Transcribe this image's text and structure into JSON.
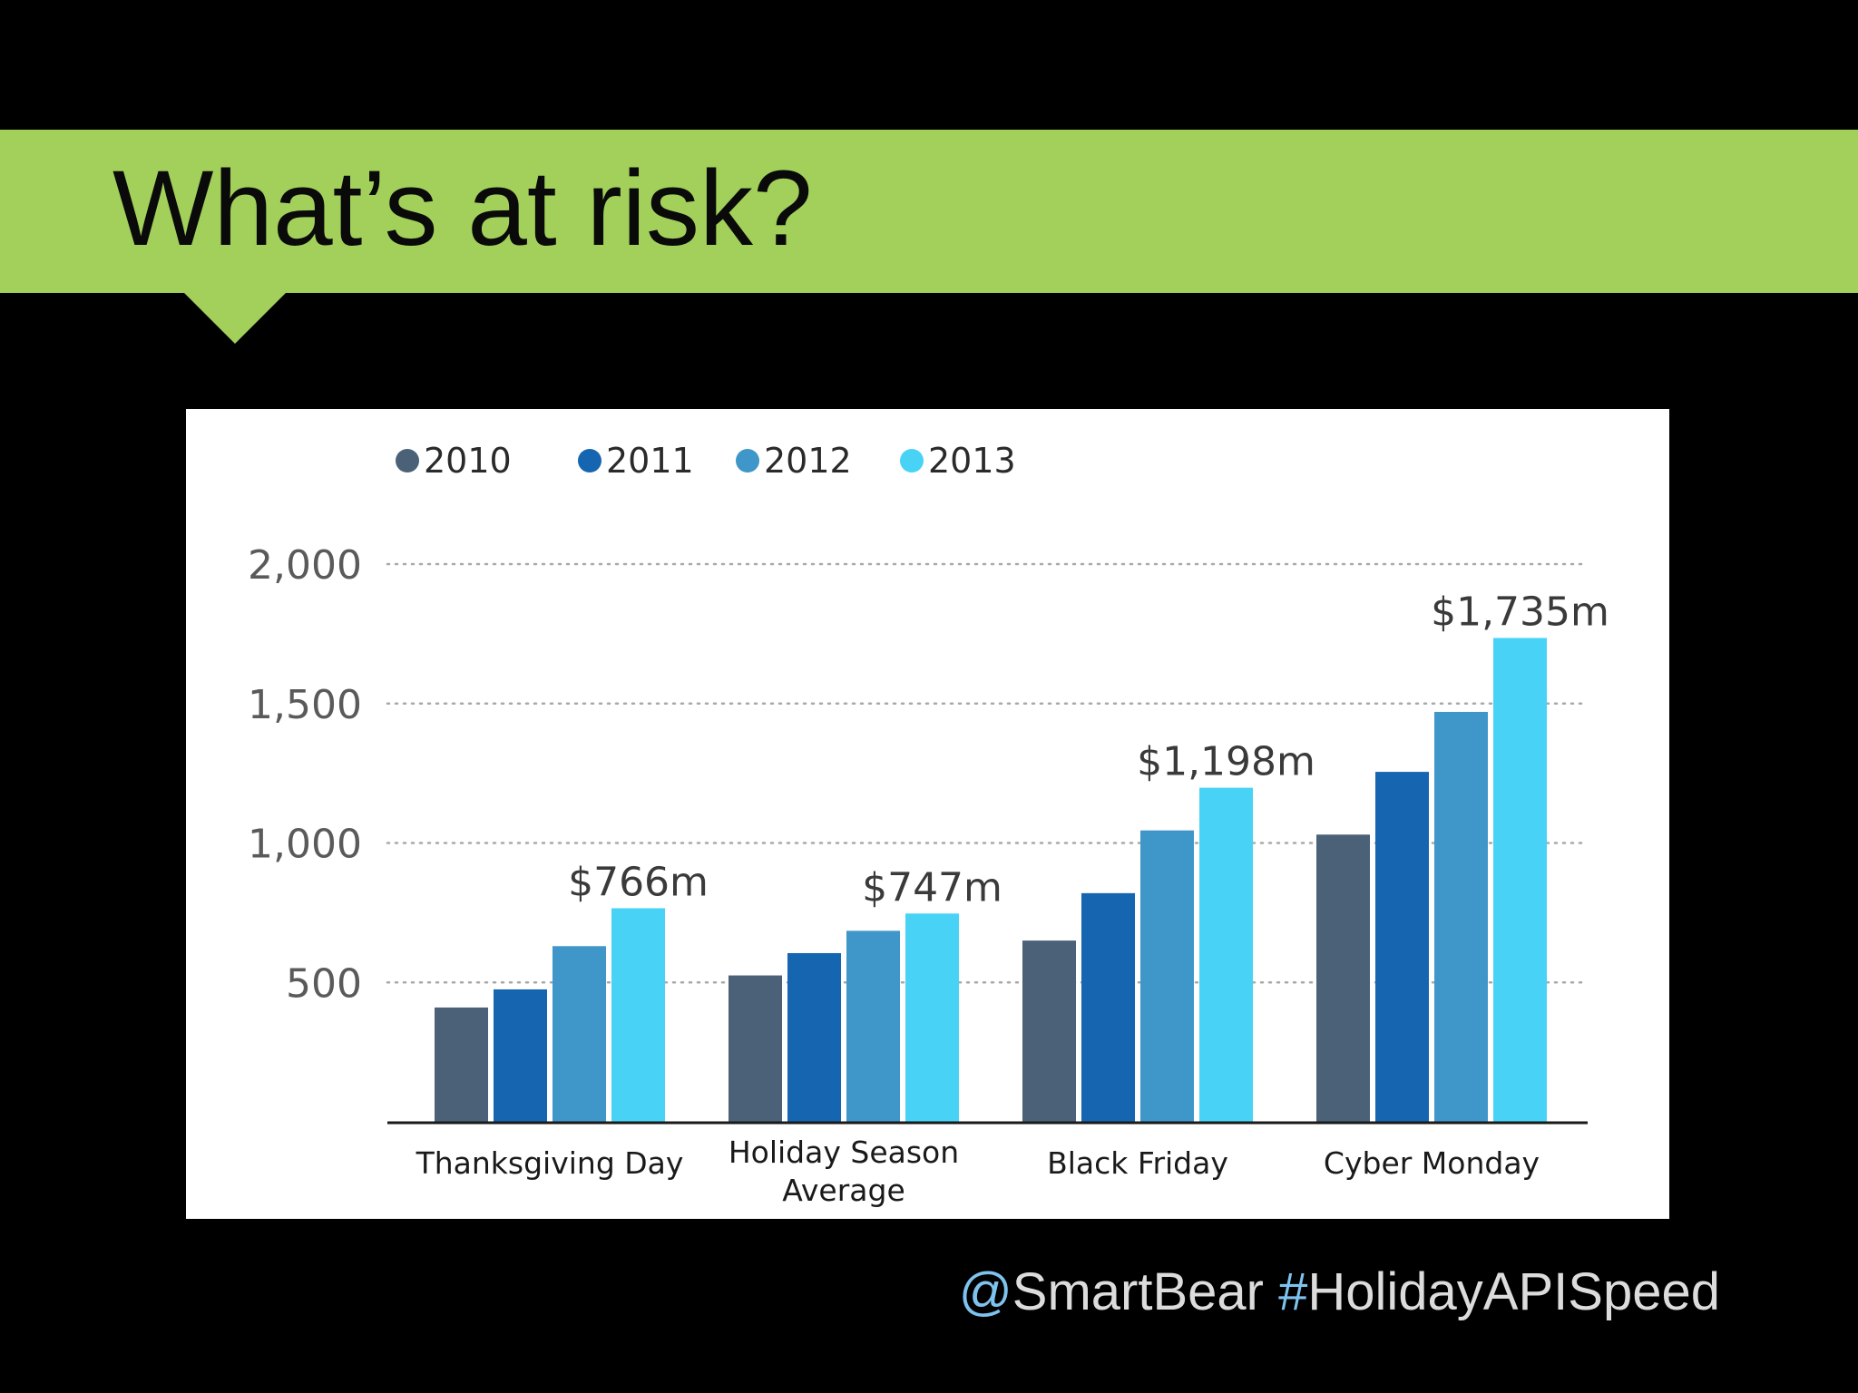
{
  "slide": {
    "title": "What’s at risk?",
    "banner_color": "#a2d05a"
  },
  "footer": {
    "at_symbol": "@",
    "handle": "SmartBear",
    "hash_symbol": "#",
    "hashtag": "HolidayAPISpeed"
  },
  "chart_data": {
    "type": "bar",
    "categories": [
      [
        "Thanksgiving Day"
      ],
      [
        "Holiday Season",
        "Average"
      ],
      [
        "Black Friday"
      ],
      [
        "Cyber Monday"
      ]
    ],
    "series": [
      {
        "name": "2010",
        "color": "#4a6178",
        "values": [
          410,
          525,
          650,
          1030
        ]
      },
      {
        "name": "2011",
        "color": "#1565b0",
        "values": [
          475,
          605,
          820,
          1255
        ]
      },
      {
        "name": "2012",
        "color": "#3f96c8",
        "values": [
          630,
          685,
          1045,
          1470
        ]
      },
      {
        "name": "2013",
        "color": "#48d3f6",
        "values": [
          766,
          747,
          1198,
          1735
        ]
      }
    ],
    "data_labels": [
      {
        "category_index": 0,
        "series_index": 3,
        "text": "$766m"
      },
      {
        "category_index": 1,
        "series_index": 3,
        "text": "$747m"
      },
      {
        "category_index": 2,
        "series_index": 3,
        "text": "$1,198m"
      },
      {
        "category_index": 3,
        "series_index": 3,
        "text": "$1,735m"
      }
    ],
    "y_ticks": [
      {
        "value": 500,
        "label": "500"
      },
      {
        "value": 1000,
        "label": "1,000"
      },
      {
        "value": 1500,
        "label": "1,500"
      },
      {
        "value": 2000,
        "label": "2,000"
      }
    ],
    "ylim": [
      0,
      2000
    ],
    "grid": "dotted",
    "legend_position": "top-left"
  }
}
